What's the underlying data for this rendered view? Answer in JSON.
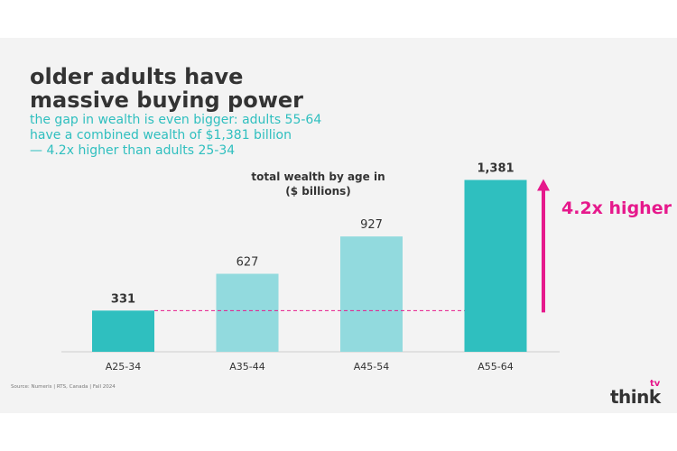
{
  "slide": {
    "title_line1": "older adults have",
    "title_line2": "massive buying power",
    "subtitle_line1": "the gap in wealth is even bigger: adults 55-64",
    "subtitle_line2": "have a combined wealth of $1,381 billion",
    "subtitle_line3": "— 4.2x higher than adults 25-34",
    "callout": "4.2x higher",
    "source": "Source: Numeris | RTS, Canada | Fall 2024",
    "logo_text": "think",
    "logo_sup": "tv"
  },
  "colors": {
    "teal": "#2fbfbf",
    "teal_light": "#92dade",
    "magenta": "#e6198c",
    "text": "#333333",
    "panel": "#f3f3f3"
  },
  "chart_data": {
    "type": "bar",
    "title_line1": "total wealth by age in",
    "title_line2": "($ billions)",
    "categories": [
      "A25-34",
      "A35-44",
      "A45-54",
      "A55-64"
    ],
    "values": [
      331,
      627,
      927,
      1381
    ],
    "value_labels": [
      "331",
      "627",
      "927",
      "1,381"
    ],
    "highlighted": [
      true,
      false,
      false,
      true
    ],
    "ylim": [
      0,
      1450
    ],
    "reference_line": 331,
    "annotation": {
      "text": "4.2x higher",
      "from": 331,
      "to": 1381
    }
  }
}
